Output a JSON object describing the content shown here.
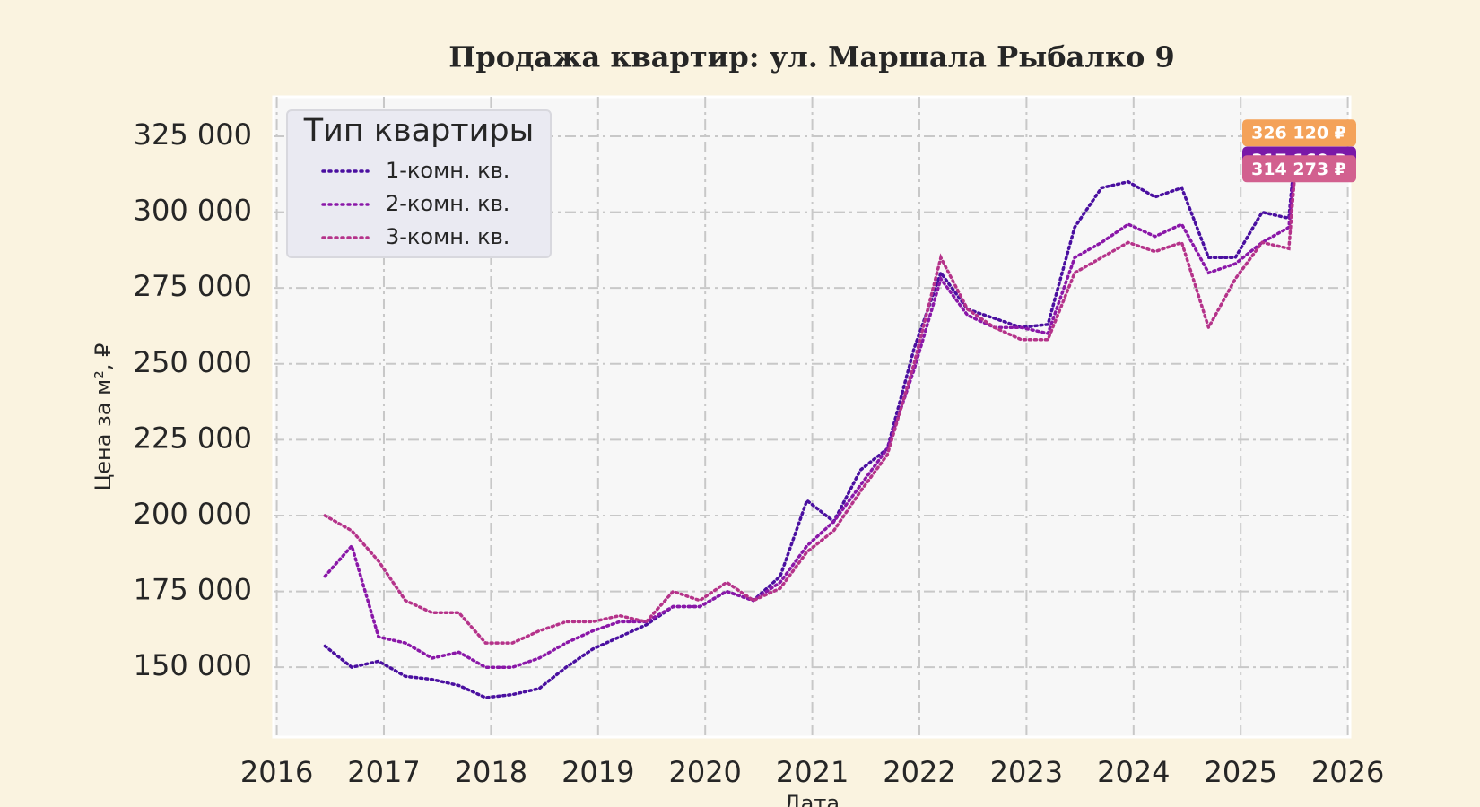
{
  "chart_data": {
    "type": "line",
    "title": "Продажа квартир: ул. Маршала Рыбалко 9",
    "x_label": "Дата",
    "y_label": "Цена за м², ₽",
    "legend_title": "Тип квартиры",
    "legend": "upper left",
    "grid": true,
    "x": [
      2016.45,
      2016.7,
      2016.95,
      2017.2,
      2017.45,
      2017.7,
      2017.95,
      2018.2,
      2018.45,
      2018.7,
      2018.95,
      2019.2,
      2019.45,
      2019.7,
      2019.95,
      2020.2,
      2020.45,
      2020.7,
      2020.95,
      2021.2,
      2021.45,
      2021.7,
      2021.95,
      2022.2,
      2022.45,
      2022.7,
      2022.95,
      2023.2,
      2023.45,
      2023.7,
      2023.95,
      2024.2,
      2024.45,
      2024.7,
      2024.95,
      2025.2,
      2025.45,
      2025.5
    ],
    "series": [
      {
        "name": "1-комн. кв.",
        "color": "#4a0fa0",
        "values": [
          157000,
          150000,
          152000,
          147000,
          146000,
          144000,
          140000,
          141000,
          143000,
          150000,
          156000,
          160000,
          164000,
          170000,
          170000,
          175000,
          172000,
          180000,
          205000,
          198000,
          215000,
          222000,
          255000,
          280000,
          268000,
          265000,
          262000,
          263000,
          295000,
          308000,
          310000,
          305000,
          308000,
          285000,
          285000,
          300000,
          298000,
          317000
        ]
      },
      {
        "name": "2-комн. кв.",
        "color": "#8a17a8",
        "values": [
          180000,
          190000,
          160000,
          158000,
          153000,
          155000,
          150000,
          150000,
          153000,
          158000,
          162000,
          165000,
          165000,
          170000,
          170000,
          175000,
          172000,
          178000,
          190000,
          198000,
          210000,
          222000,
          248000,
          278000,
          266000,
          262000,
          262000,
          260000,
          285000,
          290000,
          296000,
          292000,
          296000,
          280000,
          283000,
          290000,
          295000,
          314000
        ]
      },
      {
        "name": "3-комн. кв.",
        "color": "#b5338a",
        "values": [
          200000,
          195000,
          185000,
          172000,
          168000,
          168000,
          158000,
          158000,
          162000,
          165000,
          165000,
          167000,
          165000,
          175000,
          172000,
          178000,
          172000,
          176000,
          188000,
          195000,
          208000,
          220000,
          250000,
          285000,
          268000,
          262000,
          258000,
          258000,
          280000,
          285000,
          290000,
          287000,
          290000,
          262000,
          278000,
          290000,
          288000,
          310000
        ]
      }
    ],
    "annotations": [
      {
        "value": 326120,
        "label": "326 120 ₽",
        "color": "#f4a259"
      },
      {
        "value": 317160,
        "label": "317 160 ₽",
        "color": "#7a18a8"
      },
      {
        "value": 314273,
        "label": "314 273 ₽",
        "color": "#d2608f"
      }
    ],
    "xlim": [
      2015.97,
      2026.02
    ],
    "xticks": [
      2016,
      2017,
      2018,
      2019,
      2020,
      2021,
      2022,
      2023,
      2024,
      2025,
      2026
    ],
    "ylim": [
      127000,
      338000
    ],
    "yticks": [
      {
        "value": 150000,
        "label": "150 000"
      },
      {
        "value": 175000,
        "label": "175 000"
      },
      {
        "value": 200000,
        "label": "200 000"
      },
      {
        "value": 225000,
        "label": "225 000"
      },
      {
        "value": 250000,
        "label": "250 000"
      },
      {
        "value": 275000,
        "label": "275 000"
      },
      {
        "value": 300000,
        "label": "300 000"
      },
      {
        "value": 325000,
        "label": "325 000"
      }
    ]
  }
}
